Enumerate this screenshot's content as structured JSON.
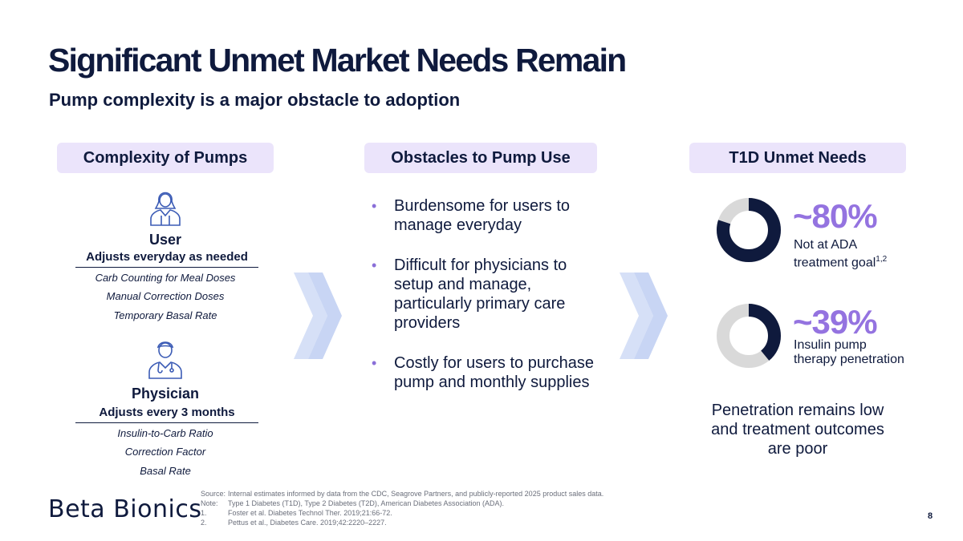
{
  "title": "Significant Unmet Market Needs Remain",
  "subtitle": "Pump complexity is a major obstacle to adoption",
  "columns": {
    "complexity": {
      "header": "Complexity of Pumps",
      "user": {
        "name": "User",
        "frequency": "Adjusts everyday as needed",
        "items": [
          "Carb Counting for Meal Doses",
          "Manual Correction Doses",
          "Temporary Basal Rate"
        ]
      },
      "physician": {
        "name": "Physician",
        "frequency": "Adjusts every 3 months",
        "items": [
          "Insulin-to-Carb Ratio",
          "Correction Factor",
          "Basal Rate"
        ]
      }
    },
    "obstacles": {
      "header": "Obstacles to Pump Use",
      "bullets": [
        "Burdensome for users to manage everyday",
        "Difficult for physicians to setup and manage, particularly primary care providers",
        "Costly for users to purchase pump and monthly supplies"
      ]
    },
    "needs": {
      "header": "T1D Unmet Needs",
      "stats": [
        {
          "value": "~80%",
          "percent": 80,
          "label": "Not at ADA treatment goal",
          "sup": "1,2"
        },
        {
          "value": "~39%",
          "percent": 39,
          "label": "Insulin pump therapy penetration",
          "sup": ""
        }
      ],
      "summary": "Penetration remains low and treatment outcomes are poor"
    }
  },
  "colors": {
    "navy": "#0f1a3d",
    "purple": "#9473e0",
    "lavender": "#ebe4fb",
    "chevron": "#d6e0f7",
    "donut_bg": "#d9d9d9"
  },
  "footer": {
    "notes": [
      {
        "label": "Source:",
        "text": "Internal estimates informed by data from the CDC, Seagrove Partners, and publicly-reported 2025 product sales data."
      },
      {
        "label": "Note:",
        "text": "Type 1 Diabetes (T1D), Type 2 Diabetes (T2D), American Diabetes Association (ADA)."
      },
      {
        "label": "1.",
        "text": "Foster et al. Diabetes Technol Ther. 2019;21:66-72."
      },
      {
        "label": "2.",
        "text": "Pettus et al., Diabetes Care. 2019;42:2220–2227."
      }
    ],
    "logo_text": "Beta Bionics",
    "page_number": "8"
  }
}
